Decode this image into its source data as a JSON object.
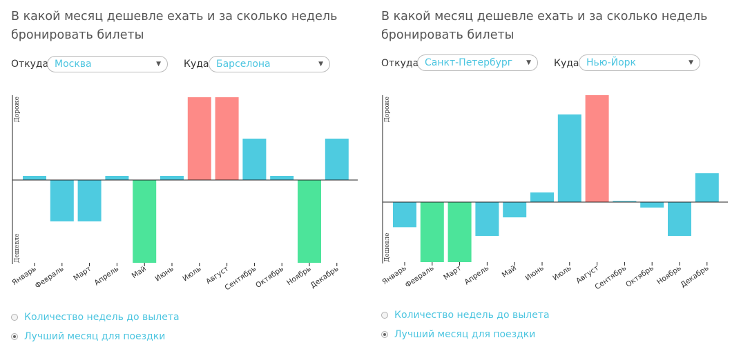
{
  "colors": {
    "normal": "#4ecbe0",
    "expensive": "#fd8a87",
    "cheap": "#4ce49a",
    "accent": "#4cc5e0",
    "axis": "#222222"
  },
  "panels": [
    {
      "title": "В какой месяц дешевле ехать и за сколько недель бронировать билеты",
      "from_label": "Откуда",
      "from_value": "Москва",
      "to_label": "Куда",
      "to_value": "Барселона",
      "select_arrow": "▼",
      "options": [
        {
          "label": "Количество недель до вылета",
          "checked": false
        },
        {
          "label": "Лучший месяц для поездки",
          "checked": true
        }
      ],
      "chart_data": {
        "type": "bar",
        "ylabel_top": "Дороже",
        "ylabel_bottom": "Дешевле",
        "categories": [
          "Январь",
          "Февраль",
          "Март",
          "Апрель",
          "Май",
          "Июнь",
          "Июль",
          "Август",
          "Сентябрь",
          "Октябрь",
          "Ноябрь",
          "Декабрь"
        ],
        "values": [
          0.05,
          -0.5,
          -0.5,
          0.05,
          -1.0,
          0.05,
          1.0,
          1.0,
          0.5,
          0.05,
          -1.0,
          0.5
        ],
        "highlight": [
          "normal",
          "normal",
          "normal",
          "normal",
          "cheap",
          "normal",
          "expensive",
          "expensive",
          "normal",
          "normal",
          "cheap",
          "normal"
        ],
        "ylim": [
          -1,
          1
        ]
      }
    },
    {
      "title": "В какой месяц дешевле ехать и за сколько недель бронировать билеты",
      "from_label": "Откуда",
      "from_value": "Санкт-Петербург",
      "to_label": "Куда",
      "to_value": "Нью-Йорк",
      "select_arrow": "▼",
      "options": [
        {
          "label": "Количество недель до вылета",
          "checked": false
        },
        {
          "label": "Лучший месяц для поездки",
          "checked": true
        }
      ],
      "chart_data": {
        "type": "bar",
        "ylabel_top": "Дороже",
        "ylabel_bottom": "Дешевле",
        "categories": [
          "Январь",
          "Февраль",
          "Март",
          "Апрель",
          "Май",
          "Июнь",
          "Июль",
          "Август",
          "Сентябрь",
          "Октябрь",
          "Ноябрь",
          "Декабрь"
        ],
        "values": [
          -0.23,
          -0.55,
          -0.55,
          -0.31,
          -0.14,
          0.09,
          0.82,
          1.0,
          0.01,
          -0.05,
          -0.31,
          0.27
        ],
        "highlight": [
          "normal",
          "cheap",
          "cheap",
          "normal",
          "normal",
          "normal",
          "normal",
          "expensive",
          "normal",
          "normal",
          "normal",
          "normal"
        ],
        "ylim": [
          -0.55,
          1.0
        ]
      }
    }
  ]
}
